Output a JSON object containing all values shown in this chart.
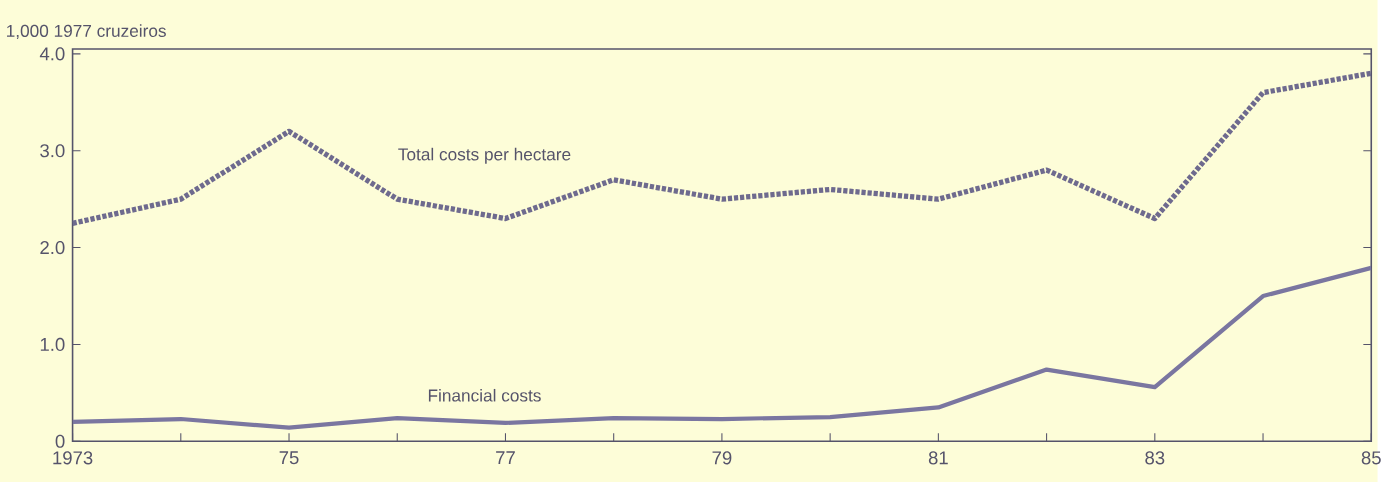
{
  "chart_data": {
    "type": "line",
    "ylabel": "1,000 1977 cruzeiros",
    "x": [
      1973,
      1974,
      1975,
      1976,
      1977,
      1978,
      1979,
      1980,
      1981,
      1982,
      1983,
      1984,
      1985
    ],
    "series": [
      {
        "name": "Total costs per hectare",
        "color": "#6e6a8e",
        "line_style": "dotted",
        "values": [
          2.25,
          2.5,
          3.2,
          2.5,
          2.3,
          2.7,
          2.5,
          2.6,
          2.5,
          2.8,
          2.3,
          3.6,
          3.8
        ]
      },
      {
        "name": "Financial costs",
        "color": "#7a76a0",
        "line_style": "solid",
        "values": [
          0.2,
          0.23,
          0.14,
          0.24,
          0.19,
          0.24,
          0.23,
          0.25,
          0.35,
          0.74,
          0.56,
          1.5,
          1.79
        ]
      }
    ],
    "xlim": [
      1973,
      1985
    ],
    "xticks": [
      1973,
      {
        "value": 1974,
        "label": null
      },
      {
        "value": 1975,
        "label": "75"
      },
      {
        "value": 1976,
        "label": null
      },
      {
        "value": 1977,
        "label": "77"
      },
      {
        "value": 1978,
        "label": null
      },
      {
        "value": 1979,
        "label": "79"
      },
      {
        "value": 1980,
        "label": null
      },
      {
        "value": 1981,
        "label": "81"
      },
      {
        "value": 1982,
        "label": null
      },
      {
        "value": 1983,
        "label": "83"
      },
      {
        "value": 1984,
        "label": null
      },
      {
        "value": 1985,
        "label": "85"
      }
    ],
    "ylim": [
      0,
      4.05
    ],
    "yticks": [
      0,
      {
        "value": 1,
        "label": "1.0"
      },
      {
        "value": 2,
        "label": "2.0"
      },
      {
        "value": 3,
        "label": "3.0"
      },
      {
        "value": 4,
        "label": "4.0"
      }
    ],
    "grid": false,
    "legend": false
  }
}
